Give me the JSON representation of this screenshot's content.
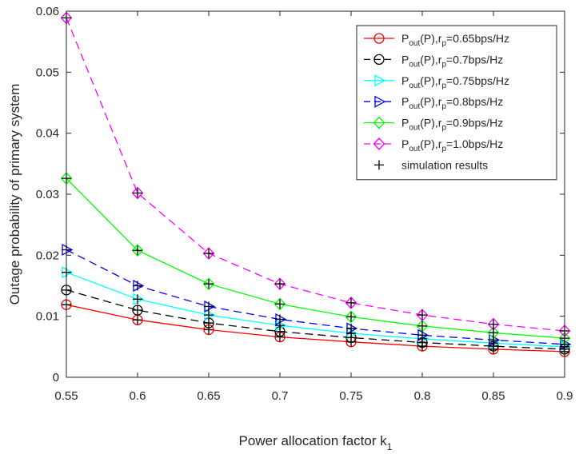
{
  "chart_data": {
    "type": "line",
    "title": "",
    "xlabel": "Power allocation factor k",
    "xlabel_sub": "1",
    "ylabel": "Outage probability of primary system",
    "xlim": [
      0.55,
      0.9
    ],
    "ylim": [
      0,
      0.06
    ],
    "x": [
      0.55,
      0.6,
      0.65,
      0.7,
      0.75,
      0.8,
      0.85,
      0.9
    ],
    "x_ticks": [
      "0.55",
      "0.6",
      "0.65",
      "0.7",
      "0.75",
      "0.8",
      "0.85",
      "0.9"
    ],
    "y_ticks": [
      "0",
      "0.01",
      "0.02",
      "0.03",
      "0.04",
      "0.05",
      "0.06"
    ],
    "grid": false,
    "legend_position": "top-right",
    "series": [
      {
        "name": "Pout(P),rp=0.65bps/Hz",
        "label_parts": [
          "P",
          "out",
          "(P),r",
          "p",
          "=0.65bps/Hz"
        ],
        "color": "#ff0000",
        "marker": "circle",
        "dash": "solid",
        "values": [
          0.0119,
          0.0094,
          0.0078,
          0.0066,
          0.0058,
          0.0051,
          0.0046,
          0.0042
        ]
      },
      {
        "name": "Pout(P),rp=0.7bps/Hz",
        "label_parts": [
          "P",
          "out",
          "(P),r",
          "p",
          "=0.7bps/Hz"
        ],
        "color": "#000000",
        "marker": "circle",
        "dash": "dashed",
        "values": [
          0.0143,
          0.011,
          0.0089,
          0.0075,
          0.0065,
          0.0057,
          0.0051,
          0.0046
        ]
      },
      {
        "name": "Pout(P),rp=0.75bps/Hz",
        "label_parts": [
          "P",
          "out",
          "(P),r",
          "p",
          "=0.75bps/Hz"
        ],
        "color": "#00ffff",
        "marker": "triangle-right",
        "dash": "solid",
        "values": [
          0.0172,
          0.0128,
          0.0102,
          0.0085,
          0.0072,
          0.0063,
          0.0056,
          0.005
        ]
      },
      {
        "name": "Pout(P),rp=0.8bps/Hz",
        "label_parts": [
          "P",
          "out",
          "(P),r",
          "p",
          "=0.8bps/Hz"
        ],
        "color": "#0000ff",
        "marker": "triangle-right",
        "dash": "dashed",
        "values": [
          0.0209,
          0.015,
          0.0116,
          0.0095,
          0.008,
          0.0069,
          0.0061,
          0.0054
        ]
      },
      {
        "name": "Pout(P),rp=0.9bps/Hz",
        "label_parts": [
          "P",
          "out",
          "(P),r",
          "p",
          "=0.9bps/Hz"
        ],
        "color": "#00ff00",
        "marker": "diamond",
        "dash": "solid",
        "values": [
          0.0326,
          0.0208,
          0.0153,
          0.012,
          0.0099,
          0.0084,
          0.0073,
          0.0064
        ]
      },
      {
        "name": "Pout(P),rp=1.0bps/Hz",
        "label_parts": [
          "P",
          "out",
          "(P),r",
          "p",
          "=1.0bps/Hz"
        ],
        "color": "#ff00ff",
        "marker": "diamond",
        "dash": "dashed",
        "values": [
          0.0589,
          0.0302,
          0.0203,
          0.0153,
          0.0122,
          0.0102,
          0.0087,
          0.0076
        ]
      },
      {
        "name": "simulation results",
        "label_parts": [
          "simulation results"
        ],
        "color": "#000000",
        "marker": "plus",
        "dash": "none",
        "values_per_series": [
          [
            0.0119,
            0.0094,
            0.0078,
            0.0066,
            0.0058,
            0.0051,
            0.0046,
            0.0042
          ],
          [
            0.0143,
            0.011,
            0.0089,
            0.0075,
            0.0065,
            0.0057,
            0.0051,
            0.0046
          ],
          [
            0.0172,
            0.0128,
            0.0102,
            0.0085,
            0.0072,
            0.0063,
            0.0056,
            0.005
          ],
          [
            0.0209,
            0.015,
            0.0116,
            0.0095,
            0.008,
            0.0069,
            0.0061,
            0.0054
          ],
          [
            0.0326,
            0.0208,
            0.0153,
            0.012,
            0.0099,
            0.0084,
            0.0073,
            0.0064
          ],
          [
            0.0589,
            0.0302,
            0.0203,
            0.0153,
            0.0122,
            0.0102,
            0.0087,
            0.0076
          ]
        ]
      }
    ]
  }
}
